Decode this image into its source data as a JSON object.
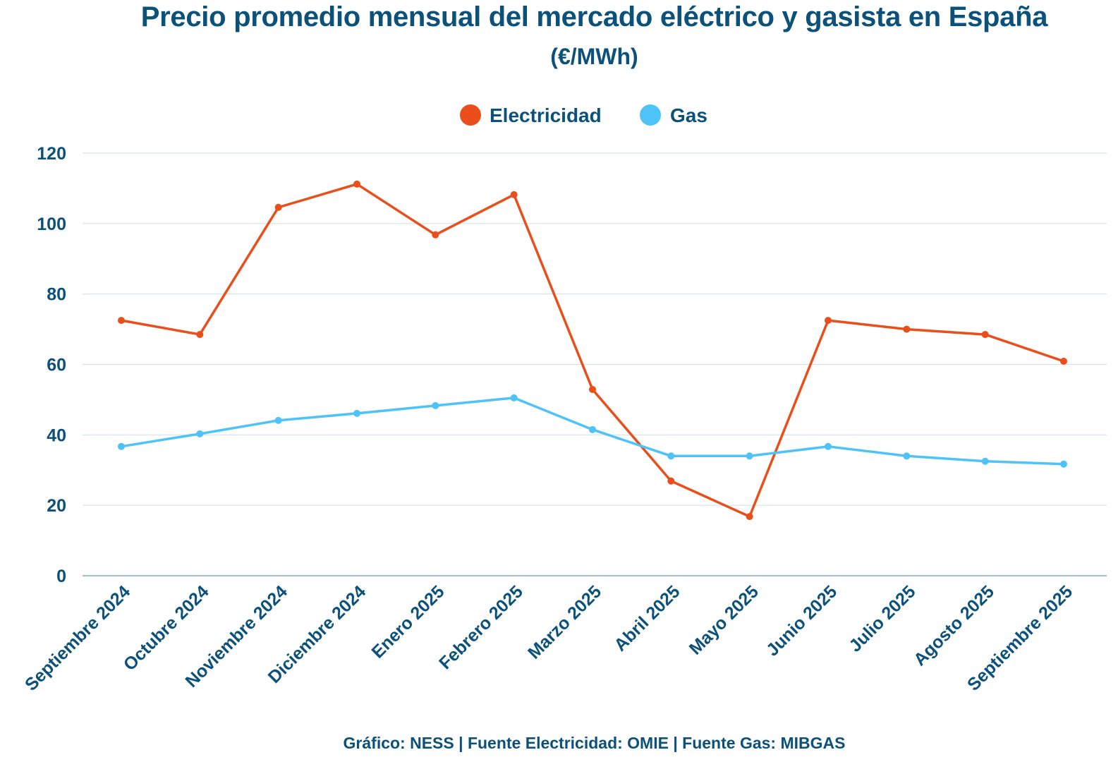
{
  "chart_data": {
    "type": "line",
    "title": "Precio promedio mensual del mercado eléctrico y gasista en España",
    "subtitle": "(€/MWh)",
    "xlabel": "",
    "ylabel": "",
    "ylim": [
      0,
      120
    ],
    "yticks": [
      "0",
      "20",
      "40",
      "60",
      "80",
      "100",
      "120"
    ],
    "ytick_values": [
      0,
      20,
      40,
      60,
      80,
      100,
      120
    ],
    "grid": true,
    "legend_position": "top-center",
    "categories": [
      "Septiembre 2024",
      "Octubre 2024",
      "Noviembre 2024",
      "Diciembre 2024",
      "Enero 2025",
      "Febrero 2025",
      "Marzo 2025",
      "Abril 2025",
      "Mayo 2025",
      "Junio 2025",
      "Julio 2025",
      "Agosto 2025",
      "Septiembre 2025"
    ],
    "series": [
      {
        "name": "Electricidad",
        "color": "#e94e1b",
        "values": [
          72.5,
          68.5,
          104.6,
          111.2,
          96.8,
          108.2,
          52.9,
          26.9,
          16.8,
          72.5,
          70.0,
          68.5,
          60.9
        ]
      },
      {
        "name": "Gas",
        "color": "#4dc3f7",
        "values": [
          36.7,
          40.3,
          44.1,
          46.1,
          48.3,
          50.5,
          41.5,
          34.0,
          34.0,
          36.7,
          34.0,
          32.5,
          31.7
        ]
      }
    ],
    "source": "Gráfico: NESS | Fuente Electricidad: OMIE | Fuente Gas: MIBGAS"
  },
  "colors": {
    "text": "#0b5179",
    "grid": "#d3e3ea",
    "axis": "#7fa7bd"
  }
}
